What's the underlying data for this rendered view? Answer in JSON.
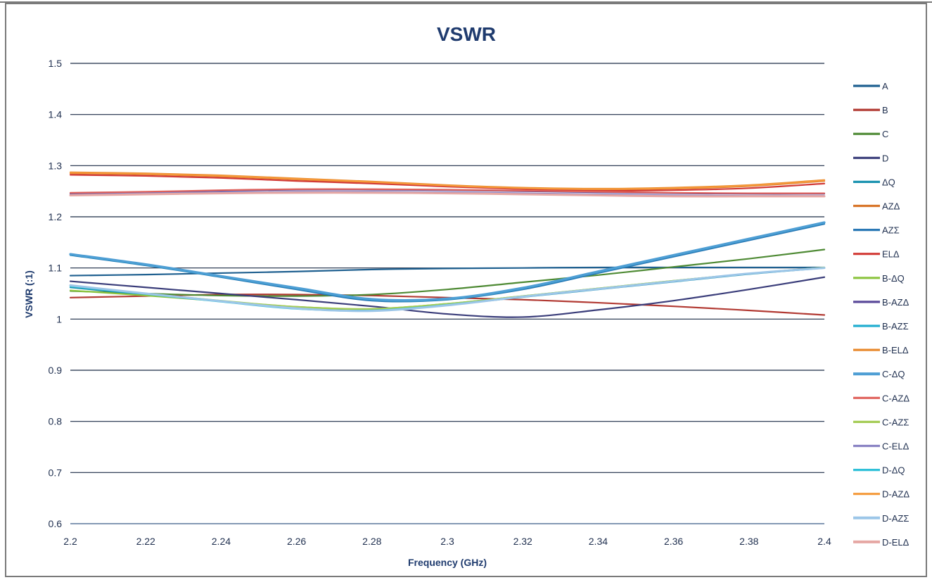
{
  "chart_data": {
    "type": "line",
    "title": "VSWR",
    "xlabel": "Frequency (GHz)",
    "ylabel": "VSWR (:1)",
    "xlim": [
      2.2,
      2.4
    ],
    "ylim": [
      0.6,
      1.5
    ],
    "x_ticks": [
      "2.2",
      "2.22",
      "2.24",
      "2.26",
      "2.28",
      "2.3",
      "2.32",
      "2.34",
      "2.36",
      "2.38",
      "2.4"
    ],
    "y_ticks": [
      "0.6",
      "0.7",
      "0.8",
      "0.9",
      "1",
      "1.1",
      "1.2",
      "1.3",
      "1.4",
      "1.5"
    ],
    "grid": "horizontal",
    "legend_position": "right",
    "x": [
      2.2,
      2.22,
      2.24,
      2.26,
      2.28,
      2.3,
      2.32,
      2.34,
      2.36,
      2.38,
      2.4
    ],
    "series": [
      {
        "name": "A",
        "color": "#1f6090",
        "width": 2.2,
        "values": [
          1.085,
          1.087,
          1.09,
          1.093,
          1.097,
          1.099,
          1.1,
          1.101,
          1.101,
          1.101,
          1.101
        ]
      },
      {
        "name": "B",
        "color": "#b23a33",
        "width": 2.2,
        "values": [
          1.042,
          1.045,
          1.048,
          1.048,
          1.046,
          1.042,
          1.038,
          1.032,
          1.025,
          1.017,
          1.008
        ]
      },
      {
        "name": "C",
        "color": "#4e8a34",
        "width": 2.2,
        "values": [
          1.055,
          1.05,
          1.046,
          1.045,
          1.048,
          1.058,
          1.072,
          1.086,
          1.102,
          1.118,
          1.136
        ]
      },
      {
        "name": "D",
        "color": "#3a3d7a",
        "width": 2.2,
        "values": [
          1.074,
          1.062,
          1.05,
          1.038,
          1.025,
          1.01,
          1.004,
          1.018,
          1.036,
          1.058,
          1.082
        ]
      },
      {
        "name": "ΔQ",
        "color": "#1b93b0",
        "width": 2.2,
        "values": [
          1.062,
          1.048,
          1.035,
          1.022,
          1.018,
          1.028,
          1.043,
          1.058,
          1.073,
          1.088,
          1.1
        ]
      },
      {
        "name": "AZΔ",
        "color": "#d8762a",
        "width": 2.2,
        "values": [
          1.285,
          1.283,
          1.279,
          1.273,
          1.267,
          1.26,
          1.255,
          1.253,
          1.255,
          1.26,
          1.27
        ]
      },
      {
        "name": "AZΣ",
        "color": "#2a78b5",
        "width": 2.2,
        "values": [
          1.125,
          1.105,
          1.082,
          1.058,
          1.036,
          1.038,
          1.058,
          1.09,
          1.122,
          1.154,
          1.186
        ]
      },
      {
        "name": "ELΔ",
        "color": "#d23a36",
        "width": 2.2,
        "values": [
          1.282,
          1.28,
          1.276,
          1.27,
          1.265,
          1.259,
          1.254,
          1.251,
          1.252,
          1.256,
          1.265
        ]
      },
      {
        "name": "B-ΔQ",
        "color": "#8cc43f",
        "width": 2.2,
        "values": [
          1.056,
          1.046,
          1.035,
          1.024,
          1.02,
          1.03,
          1.045,
          1.06,
          1.075,
          1.089,
          1.101
        ]
      },
      {
        "name": "B-AZΔ",
        "color": "#5b4a9a",
        "width": 2.2,
        "values": [
          1.245,
          1.248,
          1.251,
          1.253,
          1.253,
          1.252,
          1.25,
          1.248,
          1.246,
          1.245,
          1.245
        ]
      },
      {
        "name": "B-AZΣ",
        "color": "#22aed0",
        "width": 2.2,
        "values": [
          1.126,
          1.106,
          1.083,
          1.06,
          1.038,
          1.039,
          1.06,
          1.092,
          1.124,
          1.156,
          1.188
        ]
      },
      {
        "name": "B-ELΔ",
        "color": "#e88a2e",
        "width": 2.2,
        "values": [
          1.287,
          1.285,
          1.281,
          1.275,
          1.269,
          1.262,
          1.257,
          1.255,
          1.257,
          1.262,
          1.272
        ]
      },
      {
        "name": "C-ΔQ",
        "color": "#4e9ed4",
        "width": 3.2,
        "values": [
          1.127,
          1.107,
          1.084,
          1.061,
          1.039,
          1.04,
          1.061,
          1.093,
          1.125,
          1.157,
          1.189
        ]
      },
      {
        "name": "C-AZΔ",
        "color": "#e0625c",
        "width": 2.2,
        "values": [
          1.247,
          1.249,
          1.252,
          1.254,
          1.254,
          1.253,
          1.251,
          1.249,
          1.247,
          1.246,
          1.246
        ]
      },
      {
        "name": "C-AZΣ",
        "color": "#a5cc55",
        "width": 2.2,
        "values": [
          1.065,
          1.05,
          1.036,
          1.024,
          1.02,
          1.03,
          1.045,
          1.06,
          1.075,
          1.089,
          1.101
        ]
      },
      {
        "name": "C-ELΔ",
        "color": "#8b84c4",
        "width": 2.2,
        "values": [
          1.243,
          1.246,
          1.248,
          1.249,
          1.249,
          1.248,
          1.246,
          1.244,
          1.242,
          1.241,
          1.241
        ]
      },
      {
        "name": "D-ΔQ",
        "color": "#2fc0d8",
        "width": 2.2,
        "values": [
          1.064,
          1.049,
          1.034,
          1.02,
          1.017,
          1.028,
          1.044,
          1.059,
          1.074,
          1.089,
          1.1
        ]
      },
      {
        "name": "D-AZΔ",
        "color": "#f59a3a",
        "width": 2.2,
        "values": [
          1.286,
          1.284,
          1.28,
          1.274,
          1.268,
          1.261,
          1.256,
          1.254,
          1.256,
          1.261,
          1.271
        ]
      },
      {
        "name": "D-AZΣ",
        "color": "#9cc6e8",
        "width": 3.0,
        "values": [
          1.066,
          1.05,
          1.035,
          1.021,
          1.016,
          1.027,
          1.044,
          1.059,
          1.074,
          1.089,
          1.1
        ]
      },
      {
        "name": "D-ELΔ",
        "color": "#e6a8a4",
        "width": 3.0,
        "values": [
          1.242,
          1.244,
          1.246,
          1.247,
          1.247,
          1.246,
          1.244,
          1.242,
          1.24,
          1.24,
          1.24
        ]
      }
    ]
  }
}
